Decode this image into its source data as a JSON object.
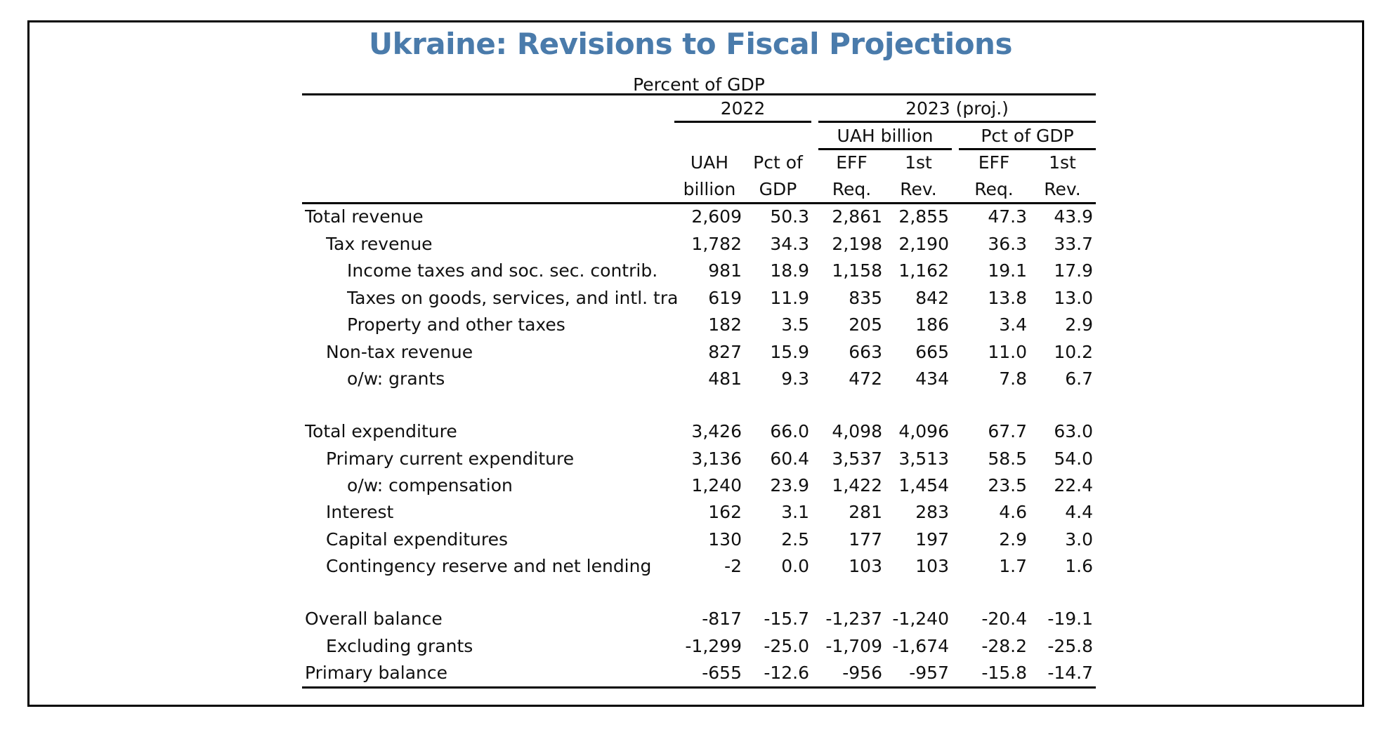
{
  "title": "Ukraine: Revisions to Fiscal Projections",
  "subtitle": "Percent of GDP",
  "headers": {
    "year2022": "2022",
    "year2023": "2023 (proj.)",
    "group_uah": "UAH billion",
    "group_pct": "Pct of GDP",
    "col1": [
      "UAH",
      "billion"
    ],
    "col2": [
      "Pct of",
      "GDP"
    ],
    "col3": [
      "EFF",
      "Req."
    ],
    "col4": [
      "1st",
      "Rev."
    ],
    "col5": [
      "EFF",
      "Req."
    ],
    "col6": [
      "1st",
      "Rev."
    ]
  },
  "rows": [
    {
      "label": "Total revenue",
      "level": 0,
      "values": [
        "2,609",
        "50.3",
        "2,861",
        "2,855",
        "47.3",
        "43.9"
      ]
    },
    {
      "label": "Tax revenue",
      "level": 1,
      "values": [
        "1,782",
        "34.3",
        "2,198",
        "2,190",
        "36.3",
        "33.7"
      ]
    },
    {
      "label": "Income taxes and soc. sec. contrib.",
      "level": 2,
      "values": [
        "981",
        "18.9",
        "1,158",
        "1,162",
        "19.1",
        "17.9"
      ]
    },
    {
      "label": "Taxes on goods, services, and intl. trade",
      "level": 2,
      "values": [
        "619",
        "11.9",
        "835",
        "842",
        "13.8",
        "13.0"
      ]
    },
    {
      "label": "Property and other taxes",
      "level": 2,
      "values": [
        "182",
        "3.5",
        "205",
        "186",
        "3.4",
        "2.9"
      ]
    },
    {
      "label": "Non-tax revenue",
      "level": 1,
      "values": [
        "827",
        "15.9",
        "663",
        "665",
        "11.0",
        "10.2"
      ]
    },
    {
      "label": "o/w: grants",
      "level": 2,
      "values": [
        "481",
        "9.3",
        "472",
        "434",
        "7.8",
        "6.7"
      ]
    },
    {
      "label": "Total expenditure",
      "level": 0,
      "values": [
        "3,426",
        "66.0",
        "4,098",
        "4,096",
        "67.7",
        "63.0"
      ]
    },
    {
      "label": "Primary current expenditure",
      "level": 1,
      "values": [
        "3,136",
        "60.4",
        "3,537",
        "3,513",
        "58.5",
        "54.0"
      ]
    },
    {
      "label": "o/w: compensation",
      "level": 2,
      "values": [
        "1,240",
        "23.9",
        "1,422",
        "1,454",
        "23.5",
        "22.4"
      ]
    },
    {
      "label": "Interest",
      "level": 1,
      "values": [
        "162",
        "3.1",
        "281",
        "283",
        "4.6",
        "4.4"
      ]
    },
    {
      "label": "Capital expenditures",
      "level": 1,
      "values": [
        "130",
        "2.5",
        "177",
        "197",
        "2.9",
        "3.0"
      ]
    },
    {
      "label": "Contingency reserve and net lending",
      "level": 1,
      "values": [
        "-2",
        "0.0",
        "103",
        "103",
        "1.7",
        "1.6"
      ]
    },
    {
      "label": "Overall balance",
      "level": 0,
      "values": [
        "-817",
        "-15.7",
        "-1,237",
        "-1,240",
        "-20.4",
        "-19.1"
      ]
    },
    {
      "label": "Excluding grants",
      "level": 1,
      "values": [
        "-1,299",
        "-25.0",
        "-1,709",
        "-1,674",
        "-28.2",
        "-25.8"
      ]
    },
    {
      "label": "Primary balance",
      "level": 0,
      "values": [
        "-655",
        "-12.6",
        "-956",
        "-957",
        "-15.8",
        "-14.7"
      ]
    }
  ]
}
